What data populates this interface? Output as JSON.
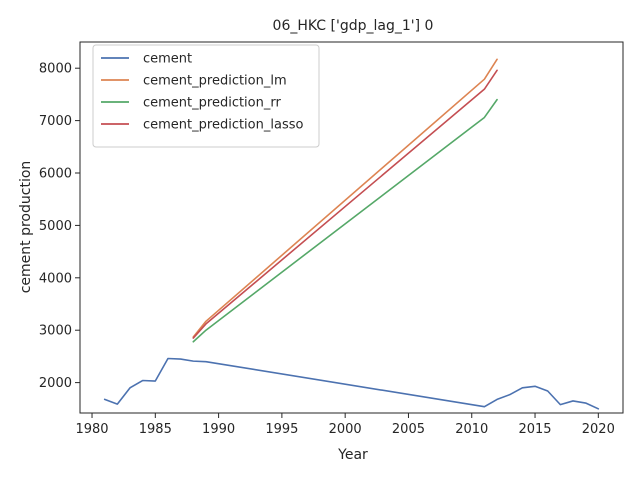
{
  "chart_data": {
    "type": "line",
    "title": "06_HKC ['gdp_lag_1'] 0",
    "xlabel": "Year",
    "ylabel": "cement production",
    "xlim": [
      1979.05,
      2021.95
    ],
    "ylim": [
      1420,
      8500
    ],
    "xticks": [
      1980,
      1985,
      1990,
      1995,
      2000,
      2005,
      2010,
      2015,
      2020
    ],
    "yticks": [
      2000,
      3000,
      4000,
      5000,
      6000,
      7000,
      8000
    ],
    "grid": false,
    "legend_position": "top-left",
    "series": [
      {
        "name": "cement",
        "color": "#4c72b0",
        "points": [
          [
            1981,
            1680
          ],
          [
            1982,
            1590
          ],
          [
            1983,
            1900
          ],
          [
            1984,
            2040
          ],
          [
            1985,
            2030
          ],
          [
            1986,
            2460
          ],
          [
            1987,
            2450
          ],
          [
            1988,
            2410
          ],
          [
            1989,
            2400
          ],
          [
            2011,
            1540
          ],
          [
            2012,
            1680
          ],
          [
            2013,
            1770
          ],
          [
            2014,
            1900
          ],
          [
            2015,
            1930
          ],
          [
            2016,
            1840
          ],
          [
            2017,
            1580
          ],
          [
            2018,
            1650
          ],
          [
            2019,
            1610
          ],
          [
            2020,
            1500
          ]
        ]
      },
      {
        "name": "cement_prediction_lm",
        "color": "#dd8452",
        "points": [
          [
            1988,
            2870
          ],
          [
            1989,
            3170
          ],
          [
            2011,
            7790
          ],
          [
            2012,
            8170
          ]
        ]
      },
      {
        "name": "cement_prediction_rr",
        "color": "#55a868",
        "points": [
          [
            1988,
            2780
          ],
          [
            1989,
            3000
          ],
          [
            2011,
            7060
          ],
          [
            2012,
            7400
          ]
        ]
      },
      {
        "name": "cement_prediction_lasso",
        "color": "#c44e52",
        "points": [
          [
            1988,
            2850
          ],
          [
            1989,
            3120
          ],
          [
            2011,
            7600
          ],
          [
            2012,
            7960
          ]
        ]
      }
    ]
  }
}
